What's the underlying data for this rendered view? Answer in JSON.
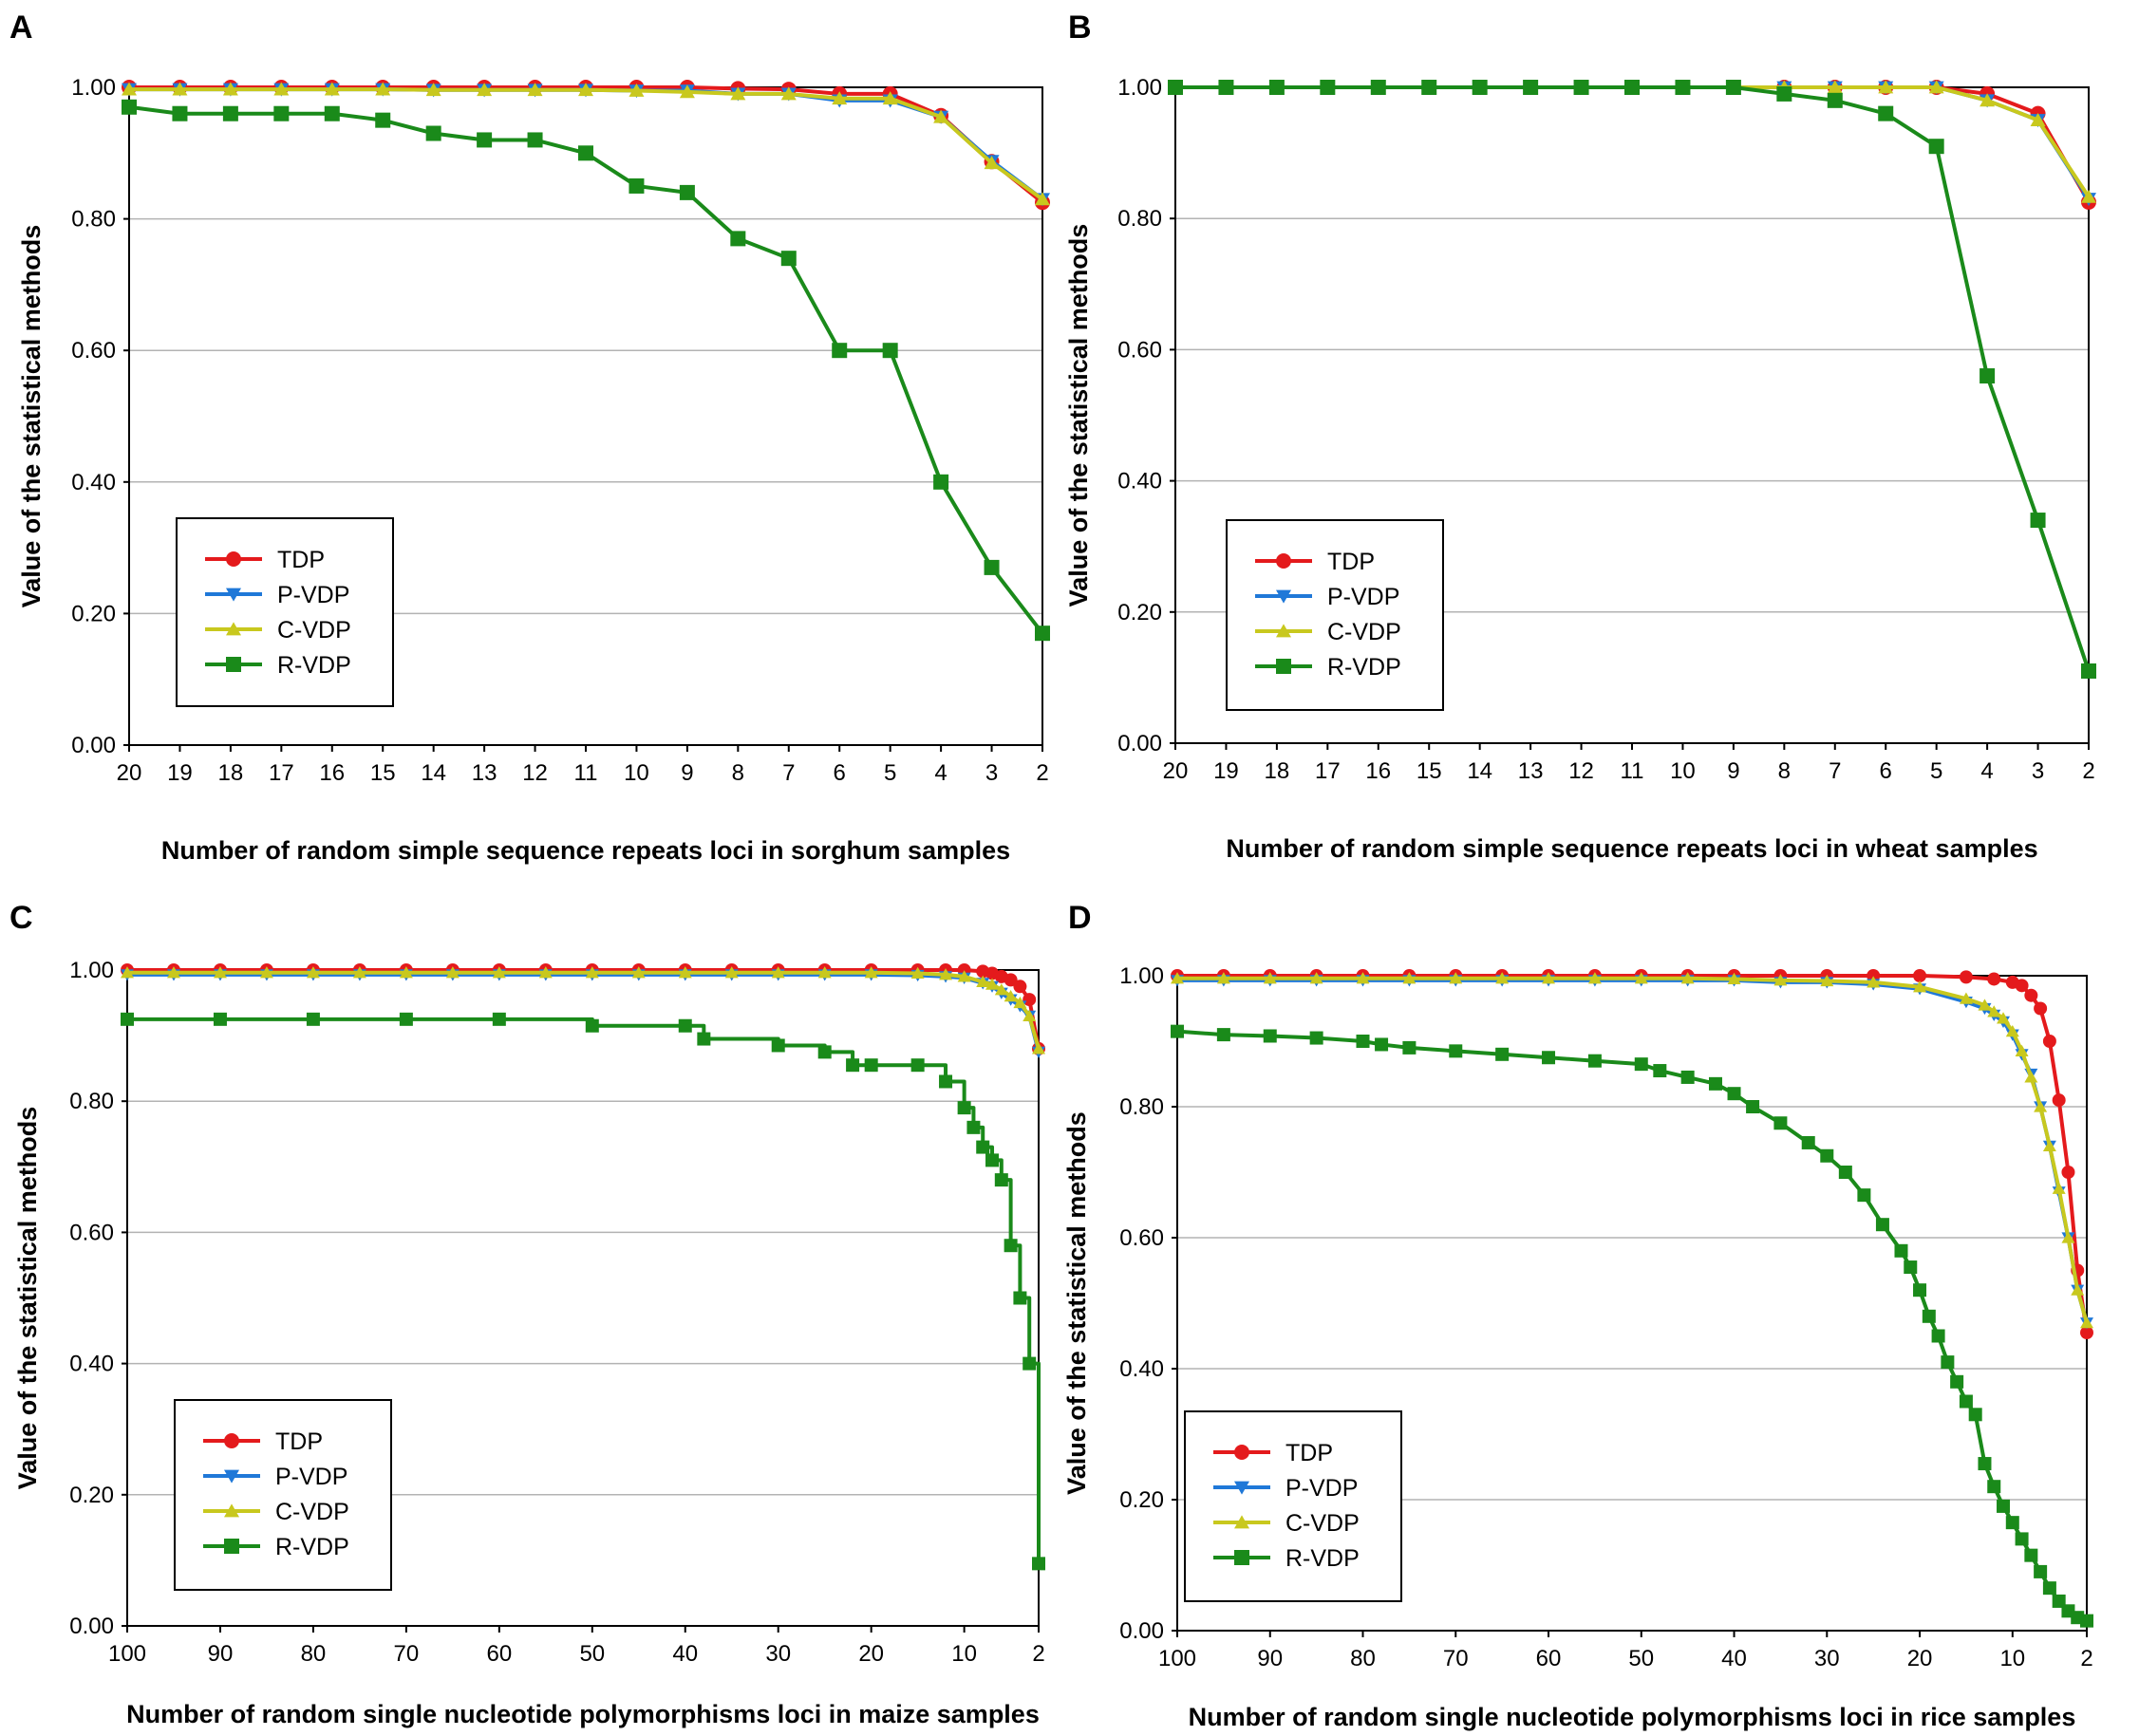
{
  "chart_data": [
    {
      "panel_label": "A",
      "type": "line",
      "xlabel": "Number of random simple sequence repeats loci in sorghum samples",
      "ylabel": "Value of the statistical methods",
      "x_reversed": true,
      "x_mode": "categorical",
      "categories": [
        "20",
        "19",
        "18",
        "17",
        "16",
        "15",
        "14",
        "13",
        "12",
        "11",
        "10",
        "9",
        "8",
        "7",
        "6",
        "5",
        "4",
        "3",
        "2"
      ],
      "yticks": [
        "0.00",
        "0.20",
        "0.40",
        "0.60",
        "0.80",
        "1.00"
      ],
      "ylim": [
        0,
        1.0
      ],
      "grid": true,
      "legend": [
        "TDP",
        "P-VDP",
        "C-VDP",
        "R-VDP"
      ],
      "legend_position": "lower-left",
      "series": [
        {
          "name": "TDP",
          "color": "#e41a1c",
          "marker": "circle",
          "values": [
            1.0,
            1.0,
            1.0,
            1.0,
            1.0,
            1.0,
            1.0,
            1.0,
            1.0,
            1.0,
            1.0,
            1.0,
            0.998,
            0.997,
            0.99,
            0.99,
            0.957,
            0.887,
            0.825
          ]
        },
        {
          "name": "P-VDP",
          "color": "#1f78d8",
          "marker": "triangle-down",
          "values": [
            0.997,
            0.997,
            0.997,
            0.997,
            0.997,
            0.997,
            0.996,
            0.996,
            0.996,
            0.996,
            0.995,
            0.995,
            0.99,
            0.99,
            0.98,
            0.98,
            0.955,
            0.888,
            0.83
          ]
        },
        {
          "name": "C-VDP",
          "color": "#c8c81e",
          "marker": "triangle-up",
          "values": [
            0.997,
            0.997,
            0.997,
            0.997,
            0.997,
            0.997,
            0.996,
            0.996,
            0.996,
            0.996,
            0.995,
            0.993,
            0.99,
            0.99,
            0.983,
            0.983,
            0.955,
            0.885,
            0.83
          ]
        },
        {
          "name": "R-VDP",
          "color": "#1a8a1a",
          "marker": "square",
          "values": [
            0.97,
            0.96,
            0.96,
            0.96,
            0.96,
            0.95,
            0.93,
            0.92,
            0.92,
            0.9,
            0.85,
            0.84,
            0.77,
            0.74,
            0.6,
            0.6,
            0.4,
            0.27,
            0.17
          ]
        }
      ]
    },
    {
      "panel_label": "B",
      "type": "line",
      "xlabel": "Number of random simple sequence repeats loci in wheat samples",
      "ylabel": "Value of the statistical methods",
      "x_reversed": true,
      "x_mode": "categorical",
      "categories": [
        "20",
        "19",
        "18",
        "17",
        "16",
        "15",
        "14",
        "13",
        "12",
        "11",
        "10",
        "9",
        "8",
        "7",
        "6",
        "5",
        "4",
        "3",
        "2"
      ],
      "yticks": [
        "0.00",
        "0.20",
        "0.40",
        "0.60",
        "0.80",
        "1.00"
      ],
      "ylim": [
        0,
        1.0
      ],
      "grid": true,
      "legend": [
        "TDP",
        "P-VDP",
        "C-VDP",
        "R-VDP"
      ],
      "legend_position": "lower-left",
      "series": [
        {
          "name": "TDP",
          "color": "#e41a1c",
          "marker": "circle",
          "values": [
            1.0,
            1.0,
            1.0,
            1.0,
            1.0,
            1.0,
            1.0,
            1.0,
            1.0,
            1.0,
            1.0,
            1.0,
            1.0,
            1.0,
            1.0,
            1.0,
            0.99,
            0.96,
            0.825
          ]
        },
        {
          "name": "P-VDP",
          "color": "#1f78d8",
          "marker": "triangle-down",
          "values": [
            1.0,
            1.0,
            1.0,
            1.0,
            1.0,
            1.0,
            1.0,
            1.0,
            1.0,
            1.0,
            1.0,
            1.0,
            1.0,
            1.0,
            1.0,
            1.0,
            0.98,
            0.95,
            0.83
          ]
        },
        {
          "name": "C-VDP",
          "color": "#c8c81e",
          "marker": "triangle-up",
          "values": [
            1.0,
            1.0,
            1.0,
            1.0,
            1.0,
            1.0,
            1.0,
            1.0,
            1.0,
            1.0,
            1.0,
            1.0,
            1.0,
            1.0,
            1.0,
            1.0,
            0.98,
            0.95,
            0.833
          ]
        },
        {
          "name": "R-VDP",
          "color": "#1a8a1a",
          "marker": "square",
          "values": [
            1.0,
            1.0,
            1.0,
            1.0,
            1.0,
            1.0,
            1.0,
            1.0,
            1.0,
            1.0,
            1.0,
            1.0,
            0.99,
            0.98,
            0.96,
            0.91,
            0.56,
            0.34,
            0.11
          ]
        }
      ]
    },
    {
      "panel_label": "C",
      "type": "line",
      "xlabel": "Number of random single nucleotide polymorphisms loci in maize samples",
      "ylabel": "Value of the statistical methods",
      "x_reversed": true,
      "x_mode": "numeric",
      "xlim": [
        100,
        2
      ],
      "xticks": [
        "100",
        "90",
        "80",
        "70",
        "60",
        "50",
        "40",
        "30",
        "20",
        "10",
        "2"
      ],
      "xtick_values": [
        100,
        90,
        80,
        70,
        60,
        50,
        40,
        30,
        20,
        10,
        2
      ],
      "yticks": [
        "0.00",
        "0.20",
        "0.40",
        "0.60",
        "0.80",
        "1.00"
      ],
      "ylim": [
        0,
        1.0
      ],
      "grid": true,
      "legend": [
        "TDP",
        "P-VDP",
        "C-VDP",
        "R-VDP"
      ],
      "legend_position": "lower-left",
      "series": [
        {
          "name": "TDP",
          "color": "#e41a1c",
          "marker": "circle",
          "x": [
            100,
            95,
            90,
            85,
            80,
            75,
            70,
            65,
            60,
            55,
            50,
            45,
            40,
            35,
            30,
            25,
            20,
            15,
            12,
            10,
            8,
            7,
            6,
            5,
            4,
            3,
            2
          ],
          "values": [
            1.0,
            1.0,
            1.0,
            1.0,
            1.0,
            1.0,
            1.0,
            1.0,
            1.0,
            1.0,
            1.0,
            1.0,
            1.0,
            1.0,
            1.0,
            1.0,
            1.0,
            1.0,
            1.0,
            1.0,
            0.998,
            0.995,
            0.99,
            0.985,
            0.975,
            0.955,
            0.88
          ]
        },
        {
          "name": "P-VDP",
          "color": "#1f78d8",
          "marker": "triangle-down",
          "x": [
            100,
            95,
            90,
            85,
            80,
            75,
            70,
            65,
            60,
            55,
            50,
            45,
            40,
            35,
            30,
            25,
            20,
            15,
            12,
            10,
            8,
            7,
            6,
            5,
            4,
            3,
            2
          ],
          "values": [
            0.993,
            0.993,
            0.993,
            0.993,
            0.993,
            0.993,
            0.993,
            0.993,
            0.993,
            0.993,
            0.993,
            0.993,
            0.993,
            0.993,
            0.993,
            0.993,
            0.993,
            0.992,
            0.99,
            0.988,
            0.98,
            0.975,
            0.965,
            0.955,
            0.945,
            0.93,
            0.875
          ]
        },
        {
          "name": "C-VDP",
          "color": "#c8c81e",
          "marker": "triangle-up",
          "x": [
            100,
            95,
            90,
            85,
            80,
            75,
            70,
            65,
            60,
            55,
            50,
            45,
            40,
            35,
            30,
            25,
            20,
            15,
            12,
            10,
            8,
            7,
            6,
            5,
            4,
            3,
            2
          ],
          "values": [
            0.996,
            0.996,
            0.996,
            0.996,
            0.996,
            0.996,
            0.996,
            0.996,
            0.996,
            0.996,
            0.996,
            0.996,
            0.996,
            0.996,
            0.996,
            0.996,
            0.996,
            0.995,
            0.993,
            0.99,
            0.982,
            0.978,
            0.97,
            0.96,
            0.95,
            0.93,
            0.88
          ]
        },
        {
          "name": "R-VDP",
          "color": "#1a8a1a",
          "marker": "square",
          "step": true,
          "x": [
            100,
            90,
            80,
            70,
            60,
            50,
            40,
            38,
            30,
            25,
            22,
            20,
            15,
            12,
            10,
            9,
            8,
            7,
            6,
            5,
            4,
            3,
            2
          ],
          "values": [
            0.925,
            0.925,
            0.925,
            0.925,
            0.925,
            0.915,
            0.915,
            0.895,
            0.885,
            0.875,
            0.855,
            0.855,
            0.855,
            0.83,
            0.79,
            0.76,
            0.73,
            0.71,
            0.68,
            0.58,
            0.5,
            0.4,
            0.095
          ]
        }
      ]
    },
    {
      "panel_label": "D",
      "type": "line",
      "xlabel": "Number of random single nucleotide polymorphisms loci in rice samples",
      "ylabel": "Value of the statistical methods",
      "x_reversed": true,
      "x_mode": "numeric",
      "xlim": [
        100,
        2
      ],
      "xticks": [
        "100",
        "90",
        "80",
        "70",
        "60",
        "50",
        "40",
        "30",
        "20",
        "10",
        "2"
      ],
      "xtick_values": [
        100,
        90,
        80,
        70,
        60,
        50,
        40,
        30,
        20,
        10,
        2
      ],
      "yticks": [
        "0.00",
        "0.20",
        "0.40",
        "0.60",
        "0.80",
        "1.00"
      ],
      "ylim": [
        0,
        1.0
      ],
      "grid": true,
      "legend": [
        "TDP",
        "P-VDP",
        "C-VDP",
        "R-VDP"
      ],
      "legend_position": "lower-left",
      "series": [
        {
          "name": "TDP",
          "color": "#e41a1c",
          "marker": "circle",
          "x": [
            100,
            95,
            90,
            85,
            80,
            75,
            70,
            65,
            60,
            55,
            50,
            45,
            40,
            35,
            30,
            25,
            20,
            15,
            12,
            10,
            9,
            8,
            7,
            6,
            5,
            4,
            3,
            2
          ],
          "values": [
            1.0,
            1.0,
            1.0,
            1.0,
            1.0,
            1.0,
            1.0,
            1.0,
            1.0,
            1.0,
            1.0,
            1.0,
            1.0,
            1.0,
            1.0,
            1.0,
            1.0,
            0.998,
            0.995,
            0.99,
            0.985,
            0.97,
            0.95,
            0.9,
            0.81,
            0.7,
            0.55,
            0.455
          ]
        },
        {
          "name": "P-VDP",
          "color": "#1f78d8",
          "marker": "triangle-down",
          "x": [
            100,
            95,
            90,
            85,
            80,
            75,
            70,
            65,
            60,
            55,
            50,
            45,
            40,
            35,
            30,
            25,
            20,
            15,
            13,
            12,
            11,
            10,
            9,
            8,
            7,
            6,
            5,
            4,
            3,
            2
          ],
          "values": [
            0.993,
            0.993,
            0.993,
            0.993,
            0.993,
            0.993,
            0.993,
            0.993,
            0.993,
            0.993,
            0.993,
            0.993,
            0.993,
            0.99,
            0.99,
            0.987,
            0.98,
            0.96,
            0.95,
            0.94,
            0.93,
            0.91,
            0.88,
            0.85,
            0.8,
            0.74,
            0.67,
            0.6,
            0.52,
            0.47
          ]
        },
        {
          "name": "C-VDP",
          "color": "#c8c81e",
          "marker": "triangle-up",
          "x": [
            100,
            95,
            90,
            85,
            80,
            75,
            70,
            65,
            60,
            55,
            50,
            45,
            40,
            35,
            30,
            25,
            20,
            15,
            13,
            12,
            11,
            10,
            9,
            8,
            7,
            6,
            5,
            4,
            3,
            2
          ],
          "values": [
            0.996,
            0.996,
            0.996,
            0.996,
            0.996,
            0.996,
            0.996,
            0.996,
            0.996,
            0.996,
            0.996,
            0.996,
            0.995,
            0.993,
            0.992,
            0.99,
            0.983,
            0.965,
            0.955,
            0.945,
            0.935,
            0.915,
            0.885,
            0.845,
            0.8,
            0.74,
            0.675,
            0.6,
            0.52,
            0.47
          ]
        },
        {
          "name": "R-VDP",
          "color": "#1a8a1a",
          "marker": "square",
          "x": [
            100,
            95,
            90,
            85,
            80,
            78,
            75,
            70,
            65,
            60,
            55,
            50,
            48,
            45,
            42,
            40,
            38,
            35,
            32,
            30,
            28,
            26,
            24,
            22,
            21,
            20,
            19,
            18,
            17,
            16,
            15,
            14,
            13,
            12,
            11,
            10,
            9,
            8,
            7,
            6,
            5,
            4,
            3,
            2
          ],
          "values": [
            0.915,
            0.91,
            0.908,
            0.905,
            0.9,
            0.895,
            0.89,
            0.885,
            0.88,
            0.875,
            0.87,
            0.865,
            0.855,
            0.845,
            0.835,
            0.82,
            0.8,
            0.775,
            0.745,
            0.725,
            0.7,
            0.665,
            0.62,
            0.58,
            0.555,
            0.52,
            0.48,
            0.45,
            0.41,
            0.38,
            0.35,
            0.33,
            0.255,
            0.22,
            0.19,
            0.165,
            0.14,
            0.115,
            0.09,
            0.065,
            0.045,
            0.03,
            0.02,
            0.015
          ]
        }
      ]
    }
  ]
}
